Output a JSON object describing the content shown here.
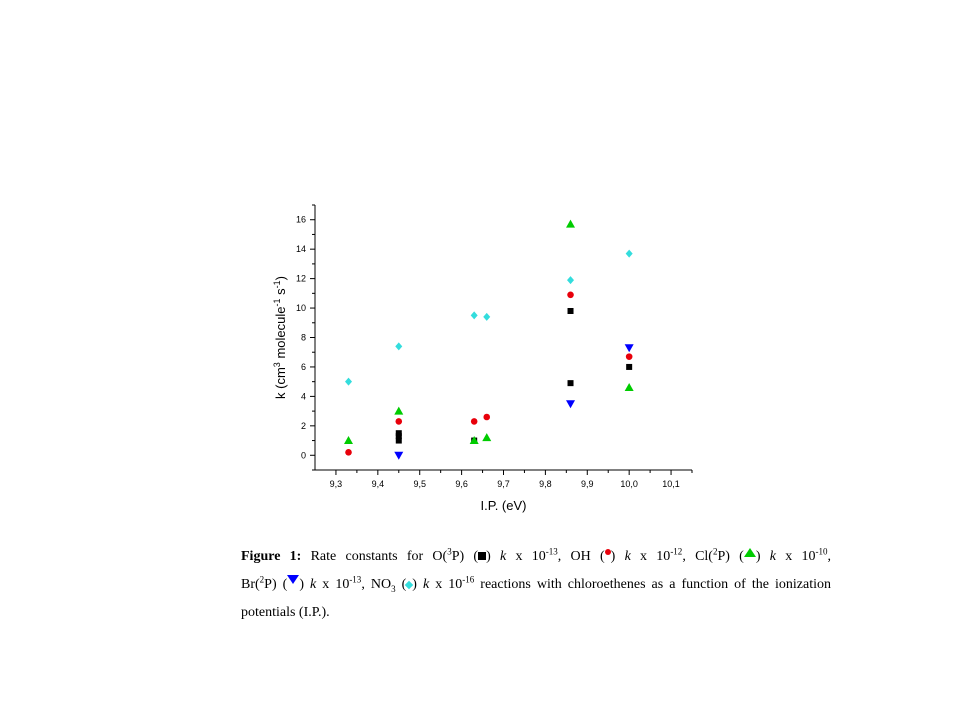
{
  "chart_data": {
    "type": "scatter",
    "xlabel": "I.P. (eV)",
    "ylabel": "k (cm3 molecule-1 s-1)",
    "ylabel_parts": {
      "base": "k (cm",
      "sup1": "3",
      "mid": " molecule",
      "sup2": "-1",
      "mid2": " s",
      "sup3": "-1",
      "end": ")"
    },
    "xlim": [
      9.25,
      10.15
    ],
    "ylim": [
      -1,
      17
    ],
    "x_ticks": [
      9.3,
      9.4,
      9.5,
      9.6,
      9.7,
      9.8,
      9.9,
      10.0,
      10.1
    ],
    "x_tick_labels": [
      "9,3",
      "9,4",
      "9,5",
      "9,6",
      "9,7",
      "9,8",
      "9,9",
      "10,0",
      "10,1"
    ],
    "y_ticks": [
      0,
      2,
      4,
      6,
      8,
      10,
      12,
      14,
      16
    ],
    "y_tick_labels": [
      "0",
      "2",
      "4",
      "6",
      "8",
      "10",
      "12",
      "14",
      "16"
    ],
    "grid": false,
    "series": [
      {
        "marker": "square",
        "color": "#000000",
        "x": [
          9.45,
          9.45,
          9.45,
          9.63,
          9.86,
          9.86,
          10.0
        ],
        "y": [
          1.0,
          1.3,
          1.5,
          1.0,
          9.8,
          4.9,
          6.0
        ]
      },
      {
        "marker": "circle",
        "color": "#e8000b",
        "x": [
          9.33,
          9.45,
          9.63,
          9.66,
          9.86,
          10.0
        ],
        "y": [
          0.2,
          2.3,
          2.3,
          2.6,
          10.9,
          6.7
        ]
      },
      {
        "marker": "triangle-up",
        "color": "#00cc00",
        "x": [
          9.33,
          9.45,
          9.63,
          9.66,
          9.86,
          10.0
        ],
        "y": [
          1.0,
          3.0,
          1.0,
          1.2,
          15.7,
          4.6
        ]
      },
      {
        "marker": "triangle-down",
        "color": "#0000ff",
        "x": [
          9.45,
          9.86,
          10.0
        ],
        "y": [
          0.0,
          3.5,
          7.3
        ]
      },
      {
        "marker": "diamond",
        "color": "#33dddd",
        "x": [
          9.33,
          9.45,
          9.63,
          9.66,
          9.86,
          10.0
        ],
        "y": [
          5.0,
          7.4,
          9.5,
          9.4,
          11.9,
          13.7
        ]
      }
    ]
  },
  "caption": {
    "label": "Figure 1:",
    "t1": " Rate constants for O(",
    "s1": "3",
    "t2": "P) (",
    "t3": ") ",
    "k": "k",
    "t4": " x 10",
    "e1": "-13",
    "t5": ", OH (",
    "t6": ") ",
    "t7": " x 10",
    "e2": "-12",
    "t8": ", Cl(",
    "s2": "2",
    "t9": "P) (",
    "t10": ") ",
    "t11": " x 10",
    "e3": "-10",
    "t12": ",",
    "t13": "Br(",
    "s3": "2",
    "t14": "P) (",
    "t15": ") ",
    "t16": " x 10",
    "e4": "-13",
    "t17": ", NO",
    "sub1": "3",
    "t18": " (",
    "t19": ") ",
    "t20": " x 10",
    "e5": "-16",
    "t21": " reactions with chloroethenes  as a function of the ionization",
    "t22": "potentials (I.P.)."
  }
}
